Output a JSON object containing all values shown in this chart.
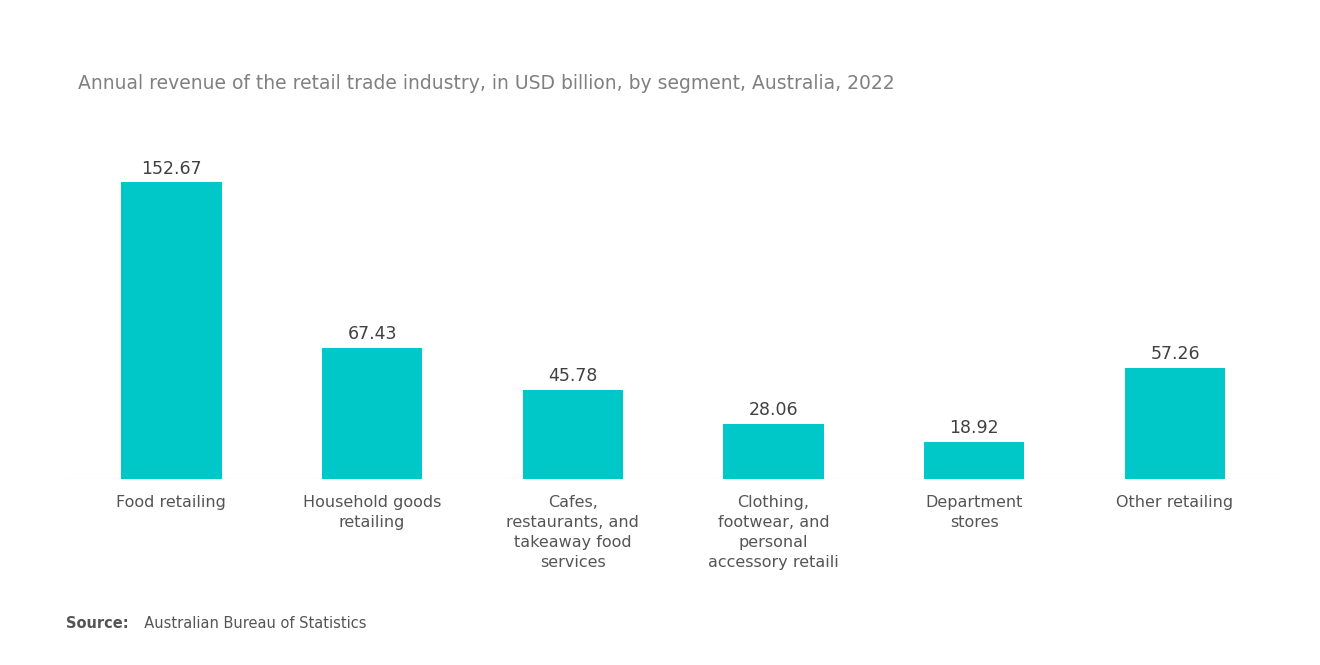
{
  "title": "Annual revenue of the retail trade industry, in USD billion, by segment, Australia, 2022",
  "categories": [
    "Food retailing",
    "Household goods\nretailing",
    "Cafes,\nrestaurants, and\ntakeaway food\nservices",
    "Clothing,\nfootwear, and\npersonal\naccessory retaili",
    "Department\nstores",
    "Other retailing"
  ],
  "values": [
    152.67,
    67.43,
    45.78,
    28.06,
    18.92,
    57.26
  ],
  "bar_color": "#00C8C8",
  "value_color": "#404040",
  "title_color": "#808080",
  "label_color": "#555555",
  "background_color": "#ffffff",
  "source_bold": "Source:",
  "source_normal": "  Australian Bureau of Statistics",
  "ylim": [
    0,
    185
  ],
  "bar_width": 0.5,
  "title_fontsize": 13.5,
  "value_fontsize": 12.5,
  "label_fontsize": 11.5
}
